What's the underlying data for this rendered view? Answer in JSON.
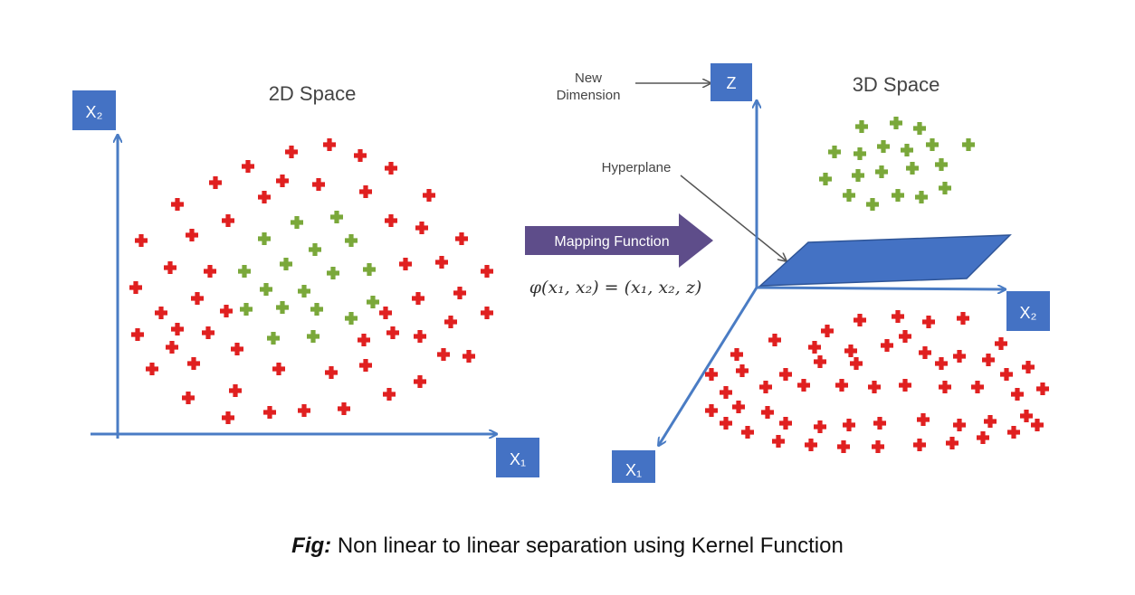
{
  "left_panel": {
    "title": "2D Space",
    "y_axis_label": "X₂",
    "x_axis_label": "X₁"
  },
  "middle": {
    "mapping_label": "Mapping Function",
    "formula": "φ(x₁, x₂) = (x₁, x₂, z)",
    "new_dimension_label": [
      "New",
      "Dimension"
    ],
    "hyperplane_label": "Hyperplane"
  },
  "right_panel": {
    "title": "3D Space",
    "z_axis_label": "Z",
    "x2_axis_label": "X₂",
    "x1_axis_label": "X₁"
  },
  "caption": {
    "prefix": "Fig:",
    "text": " Non linear to linear separation using Kernel Function"
  },
  "colors": {
    "axis": "#4a7cc4",
    "box": "#4472c4",
    "class_red": "#e02020",
    "class_green": "#7aa83a",
    "arrow_purple": "#5e4d8a",
    "plane": "#4472c4"
  }
}
